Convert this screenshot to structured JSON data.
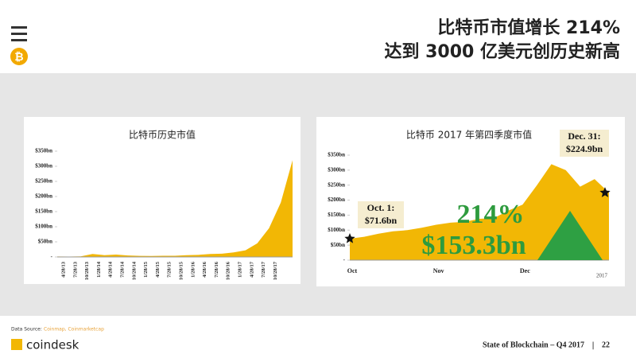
{
  "header": {
    "title_line1": "比特币市值增长 214%",
    "title_line2": "达到 3000 亿美元创历史新高"
  },
  "footer": {
    "source_label": "Data Source:",
    "source_names": "Coinmap, Coinmarketcap",
    "brand": "coindesk",
    "report": "State of Blockchain – Q4 2017",
    "separator": "|",
    "page": "22"
  },
  "chart_data": [
    {
      "type": "area",
      "title": "比特币历史市值",
      "color": "#f2b705",
      "categories": [
        "4/28/13",
        "7/28/13",
        "10/28/13",
        "1/28/14",
        "4/28/14",
        "7/28/14",
        "10/28/14",
        "1/28/15",
        "4/28/15",
        "7/28/15",
        "10/28/15",
        "1/28/16",
        "4/28/16",
        "7/28/16",
        "10/28/16",
        "1/28/17",
        "4/28/17",
        "7/28/17",
        "10/28/17",
        null,
        null
      ],
      "values": [
        1.5,
        1.2,
        2,
        10,
        6,
        8,
        5,
        3.5,
        3.2,
        4,
        4,
        6,
        7,
        10,
        11,
        15,
        22,
        45,
        95,
        180,
        320
      ],
      "ylim": [
        0,
        350
      ],
      "yticks": [
        {
          "value": 0,
          "label": "-"
        },
        {
          "value": 50,
          "label": "$50bn"
        },
        {
          "value": 100,
          "label": "$100bn"
        },
        {
          "value": 150,
          "label": "$150bn"
        },
        {
          "value": 200,
          "label": "$200bn"
        },
        {
          "value": 250,
          "label": "$250bn"
        },
        {
          "value": 300,
          "label": "$300bn"
        },
        {
          "value": 350,
          "label": "$350bn"
        }
      ]
    },
    {
      "type": "area",
      "title": "比特币 2017 年第四季度市值",
      "color": "#f2b705",
      "categories": [
        "Oct",
        null,
        null,
        null,
        null,
        null,
        "Nov",
        null,
        null,
        null,
        null,
        null,
        "Dec",
        null,
        null,
        null,
        null,
        null,
        null
      ],
      "values": [
        71.6,
        78,
        88,
        96,
        100,
        108,
        118,
        125,
        128,
        138,
        140,
        165,
        185,
        250,
        320,
        300,
        245,
        270,
        224.9
      ],
      "ylim": [
        0,
        350
      ],
      "yticks": [
        {
          "value": 0,
          "label": "-"
        },
        {
          "value": 50,
          "label": "$50bn"
        },
        {
          "value": 100,
          "label": "$100bn"
        },
        {
          "value": 150,
          "label": "$150bn"
        },
        {
          "value": 200,
          "label": "$200bn"
        },
        {
          "value": 250,
          "label": "$250bn"
        },
        {
          "value": 300,
          "label": "$300bn"
        },
        {
          "value": 350,
          "label": "$350bn"
        }
      ],
      "year_label": "2017",
      "start_note": [
        "Oct. 1:",
        "$71.6bn"
      ],
      "end_note": [
        "Dec. 31:",
        "$224.9bn"
      ],
      "growth": "214%",
      "gain": "$153.3bn"
    }
  ]
}
